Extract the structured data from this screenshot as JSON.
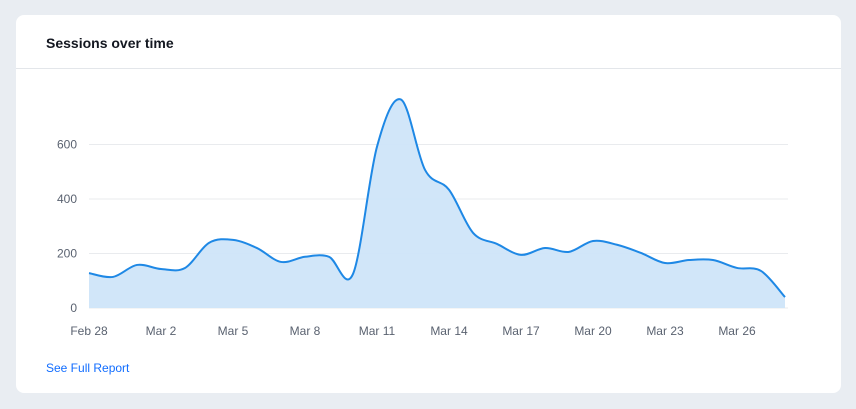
{
  "card": {
    "title": "Sessions over time",
    "link_label": "See Full Report"
  },
  "chart_data": {
    "type": "area",
    "title": "Sessions over time",
    "xlabel": "",
    "ylabel": "",
    "x": [
      "Feb 28",
      "Feb 29",
      "Mar 1",
      "Mar 2",
      "Mar 3",
      "Mar 4",
      "Mar 5",
      "Mar 6",
      "Mar 7",
      "Mar 8",
      "Mar 9",
      "Mar 10",
      "Mar 11",
      "Mar 12",
      "Mar 13",
      "Mar 14",
      "Mar 15",
      "Mar 16",
      "Mar 17",
      "Mar 18",
      "Mar 19",
      "Mar 20",
      "Mar 21",
      "Mar 22",
      "Mar 23",
      "Mar 24",
      "Mar 25",
      "Mar 26",
      "Mar 27",
      "Mar 28"
    ],
    "values": [
      128,
      114,
      158,
      143,
      147,
      239,
      250,
      220,
      169,
      188,
      188,
      125,
      592,
      765,
      507,
      434,
      276,
      235,
      195,
      220,
      206,
      246,
      232,
      202,
      165,
      176,
      176,
      147,
      136,
      40
    ],
    "xticks": [
      "Feb 28",
      "Mar 2",
      "Mar 5",
      "Mar 8",
      "Mar 11",
      "Mar 14",
      "Mar 17",
      "Mar 20",
      "Mar 23",
      "Mar 26"
    ],
    "yticks": [
      0,
      200,
      400,
      600
    ],
    "ylim": [
      0,
      780
    ],
    "grid": true,
    "colors": {
      "line": "#1e88e5",
      "fill": "#cfe5f9",
      "grid": "#e9ebee",
      "tick_text": "#5a6270"
    }
  }
}
